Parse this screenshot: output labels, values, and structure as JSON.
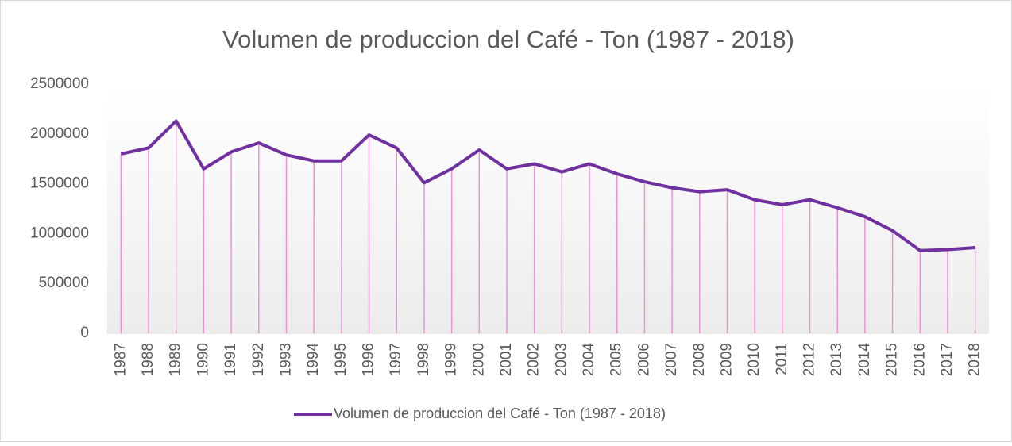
{
  "chart_data": {
    "type": "line",
    "title": "Volumen de produccion del Café - Ton (1987 - 2018)",
    "categories": [
      "1987",
      "1988",
      "1989",
      "1990",
      "1991",
      "1992",
      "1993",
      "1994",
      "1995",
      "1996",
      "1997",
      "1998",
      "1999",
      "2000",
      "2001",
      "2002",
      "2003",
      "2004",
      "2005",
      "2006",
      "2007",
      "2008",
      "2009",
      "2010",
      "2011",
      "2012",
      "2013",
      "2014",
      "2015",
      "2016",
      "2017",
      "2018"
    ],
    "series": [
      {
        "name": "Volumen de produccion del Café - Ton (1987 - 2018)",
        "color": "#7030a0",
        "values": [
          1800000,
          1860000,
          2130000,
          1650000,
          1820000,
          1910000,
          1790000,
          1730000,
          1730000,
          1990000,
          1860000,
          1510000,
          1650000,
          1840000,
          1650000,
          1700000,
          1620000,
          1700000,
          1600000,
          1520000,
          1460000,
          1420000,
          1440000,
          1340000,
          1290000,
          1340000,
          1260000,
          1170000,
          1030000,
          830000,
          840000,
          860000
        ]
      }
    ],
    "drop_line_color": "#f090d8",
    "ylim": [
      0,
      2500000
    ],
    "yticks": [
      0,
      500000,
      1000000,
      1500000,
      2000000,
      2500000
    ],
    "legend": "bottom"
  }
}
